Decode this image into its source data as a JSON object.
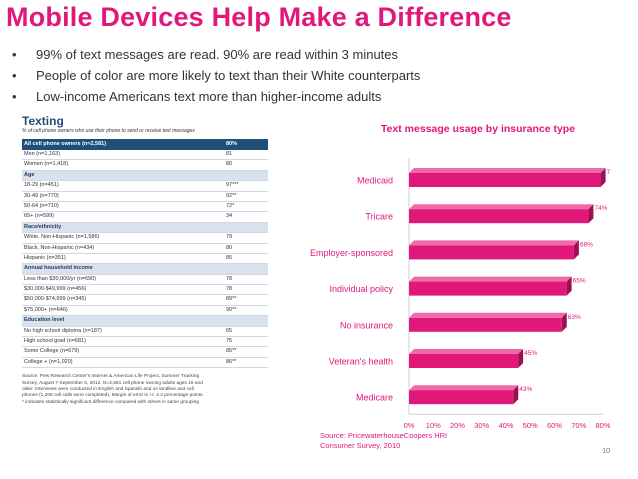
{
  "title": "Mobile Devices Help Make a Difference",
  "bullets": [
    "99% of text messages are read. 90% are read within 3 minutes",
    "People of color are more likely to text than their White counterparts",
    "Low-income Americans text more than higher-income adults"
  ],
  "bullet_glyph": "•",
  "table": {
    "title": "Texting",
    "subtitle": "% of cell phone owners who use their phone to send or receive text messages",
    "rows": [
      {
        "label": "All cell phone owners (n=2,581)",
        "value": "80%",
        "kind": "header"
      },
      {
        "label": "Men (n=1,163)",
        "value": "81",
        "kind": "row"
      },
      {
        "label": "Women (n=1,418)",
        "value": "80",
        "kind": "row"
      },
      {
        "label": "Age",
        "value": "",
        "kind": "section"
      },
      {
        "label": "18-29 (n=451)",
        "value": "97***",
        "kind": "row"
      },
      {
        "label": "30-49 (n=770)",
        "value": "92**",
        "kind": "row"
      },
      {
        "label": "50-64 (n=710)",
        "value": "72*",
        "kind": "row"
      },
      {
        "label": "65+ (n=599)",
        "value": "34",
        "kind": "row"
      },
      {
        "label": "Race/ethnicity",
        "value": "",
        "kind": "section"
      },
      {
        "label": "White, Non-Hispanic (n=1,586)",
        "value": "79",
        "kind": "row"
      },
      {
        "label": "Black, Non-Hispanic (n=434)",
        "value": "80",
        "kind": "row"
      },
      {
        "label": "Hispanic (n=351)",
        "value": "85",
        "kind": "row"
      },
      {
        "label": "Annual household income",
        "value": "",
        "kind": "section"
      },
      {
        "label": "Less than $30,000/yr (n=690)",
        "value": "78",
        "kind": "row"
      },
      {
        "label": "$30,000-$49,999 (n=456)",
        "value": "78",
        "kind": "row"
      },
      {
        "label": "$50,000-$74,999 (n=345)",
        "value": "89**",
        "kind": "row"
      },
      {
        "label": "$75,000+ (n=646)",
        "value": "90**",
        "kind": "row"
      },
      {
        "label": "Education level",
        "value": "",
        "kind": "section"
      },
      {
        "label": "No high school diploma (n=187)",
        "value": "65",
        "kind": "row"
      },
      {
        "label": "High school grad (n=681)",
        "value": "75",
        "kind": "row"
      },
      {
        "label": "Some College (n=679)",
        "value": "85**",
        "kind": "row"
      },
      {
        "label": "College + (n=1,020)",
        "value": "86**",
        "kind": "row"
      }
    ],
    "notes": "Source: Pew Research Center's Internet & American Life Project, Summer Tracking\nSurvey, August 7-September 6, 2012. N=2,581 cell phone owning adults ages 18 and\nolder. Interviews were conducted in English and Spanish and on landline and cell\nphones (1,206 cell calls were completed). Margin of error is +/- 2.2 percentage points.\n* indicates statistically significant difference compared with others in same grouping"
  },
  "chart_data": {
    "type": "bar",
    "orientation": "horizontal",
    "title": "Text message usage by insurance type",
    "categories": [
      "Medicaid",
      "Tricare",
      "Employer-sponsored",
      "Individual policy",
      "No insurance",
      "Veteran's health",
      "Medicare"
    ],
    "values": [
      79,
      74,
      68,
      65,
      63,
      45,
      43
    ],
    "data_labels": [
      "79%",
      "74%",
      "68%",
      "65%",
      "63%",
      "45%",
      "43%"
    ],
    "x_ticks": [
      "0%",
      "10%",
      "20%",
      "30%",
      "40%",
      "50%",
      "60%",
      "70%",
      "80%"
    ],
    "xlim": [
      0,
      80
    ],
    "xlabel": "",
    "ylabel": "",
    "grid": false,
    "legend": "none",
    "bar_color": "#e0187a",
    "bar_side_color": "#9c0f53",
    "bar_top_color": "#f06aa8"
  },
  "source": {
    "line1": "Source: PricewaterhouseCoopers HRI",
    "line2": "Consumer Survey, 2010"
  },
  "page_number": "10",
  "colors": {
    "accent": "#e0187a",
    "table_header": "#1f4e79",
    "table_section": "#d9e1ec"
  }
}
